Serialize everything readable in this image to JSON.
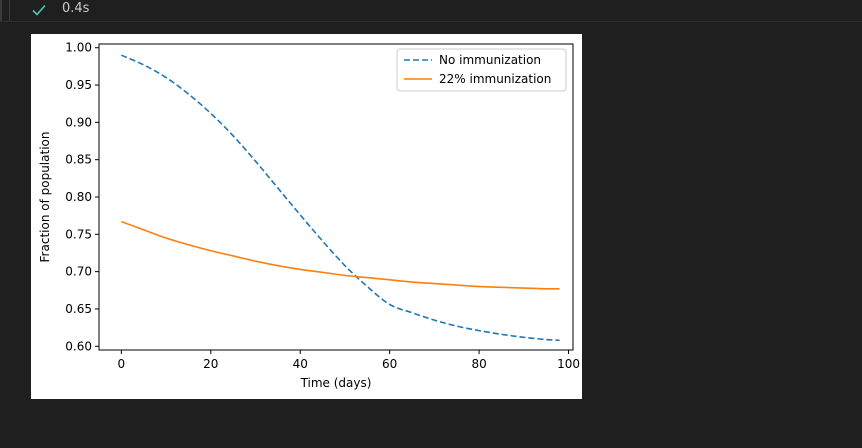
{
  "cell": {
    "status": "success",
    "elapsed": "0.4s"
  },
  "colors": {
    "background": "#1f1f1f",
    "success": "#4ec9b0",
    "series_a": "#1f77b4",
    "series_b": "#ff7f0e"
  },
  "chart_data": {
    "type": "line",
    "title": "",
    "xlabel": "Time (days)",
    "ylabel": "Fraction of population",
    "xlim": [
      -5,
      101
    ],
    "ylim": [
      0.595,
      1.005
    ],
    "xticks": [
      0,
      20,
      40,
      60,
      80,
      100
    ],
    "yticks": [
      0.6,
      0.65,
      0.7,
      0.75,
      0.8,
      0.85,
      0.9,
      0.95,
      1.0
    ],
    "legend_position": "top-right",
    "series": [
      {
        "name": "No immunization",
        "style": "dashed",
        "color": "#1f77b4",
        "x": [
          0,
          5,
          10,
          15,
          20,
          25,
          30,
          35,
          40,
          45,
          50,
          55,
          60,
          65,
          70,
          75,
          80,
          85,
          90,
          95,
          98
        ],
        "y": [
          0.99,
          0.977,
          0.96,
          0.938,
          0.912,
          0.882,
          0.848,
          0.812,
          0.776,
          0.741,
          0.708,
          0.68,
          0.656,
          0.645,
          0.635,
          0.627,
          0.621,
          0.616,
          0.612,
          0.609,
          0.608
        ]
      },
      {
        "name": "22% immunization",
        "style": "solid",
        "color": "#ff7f0e",
        "x": [
          0,
          5,
          10,
          15,
          20,
          25,
          30,
          35,
          40,
          45,
          50,
          55,
          60,
          65,
          70,
          75,
          80,
          85,
          90,
          95,
          98
        ],
        "y": [
          0.767,
          0.756,
          0.745,
          0.736,
          0.728,
          0.721,
          0.714,
          0.708,
          0.703,
          0.699,
          0.695,
          0.692,
          0.689,
          0.686,
          0.684,
          0.682,
          0.68,
          0.679,
          0.678,
          0.677,
          0.677
        ]
      }
    ]
  }
}
